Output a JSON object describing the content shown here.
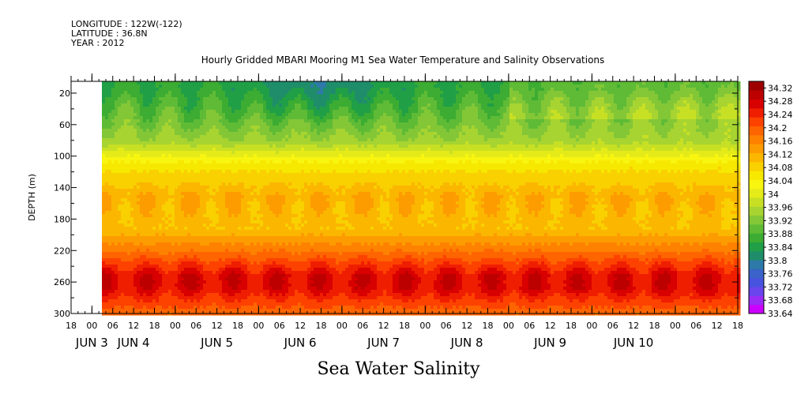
{
  "header": {
    "longitude": "LONGITUDE : 122W(-122)",
    "latitude": "LATITUDE : 36.8N",
    "year": "YEAR : 2012"
  },
  "chart_data": {
    "type": "heatmap",
    "title": "Hourly Gridded MBARI Mooring M1 Sea Water Temperature and Salinity Observations",
    "bottom_title": "Sea Water Salinity",
    "ylabel": "DEPTH (m)",
    "y_range": [
      300,
      5
    ],
    "y_ticks": [
      20,
      60,
      100,
      140,
      180,
      220,
      260,
      300
    ],
    "x_hour_ticks": [
      "18",
      "00",
      "06",
      "12",
      "18",
      "00",
      "06",
      "12",
      "18",
      "00",
      "06",
      "12",
      "18",
      "00",
      "06",
      "12",
      "18",
      "00",
      "06",
      "12",
      "18",
      "00",
      "06",
      "12",
      "18",
      "00",
      "06",
      "12",
      "18",
      "00",
      "06",
      "12",
      "18"
    ],
    "x_day_labels": [
      {
        "label": "JUN  3",
        "at": "JUN 3 00"
      },
      {
        "label": "JUN  4",
        "at": "JUN 3 12"
      },
      {
        "label": "JUN  5",
        "at": "JUN 4 12"
      },
      {
        "label": "JUN  6",
        "at": "JUN 5 12"
      },
      {
        "label": "JUN  7",
        "at": "JUN 6 12"
      },
      {
        "label": "JUN  8",
        "at": "JUN 7 12"
      },
      {
        "label": "JUN  9",
        "at": "JUN 8 12"
      },
      {
        "label": "JUN  10",
        "at": "JUN 9 12"
      }
    ],
    "data_start": "JUN 3 00",
    "colorbar": {
      "levels": [
        "34.32",
        "34.28",
        "34.24",
        "34.2",
        "34.16",
        "34.12",
        "34.08",
        "34.04",
        "34",
        "33.96",
        "33.92",
        "33.88",
        "33.84",
        "33.8",
        "33.76",
        "33.72",
        "33.68",
        "33.64"
      ],
      "min": 33.64,
      "max": 34.34
    },
    "profile": [
      {
        "depth": 10,
        "value": 33.86
      },
      {
        "depth": 40,
        "value": 33.9
      },
      {
        "depth": 80,
        "value": 33.95
      },
      {
        "depth": 110,
        "value": 34.06
      },
      {
        "depth": 150,
        "value": 34.12
      },
      {
        "depth": 190,
        "value": 34.1
      },
      {
        "depth": 220,
        "value": 34.18
      },
      {
        "depth": 250,
        "value": 34.27
      },
      {
        "depth": 265,
        "value": 34.27
      },
      {
        "depth": 300,
        "value": 34.18
      }
    ],
    "colors": [
      "#cc00ff",
      "#9a2cf5",
      "#6a44ec",
      "#4753de",
      "#3b63c9",
      "#2d7aa8",
      "#1f8d6a",
      "#209f47",
      "#3cac32",
      "#5fbb36",
      "#83c737",
      "#a7d430",
      "#c8e024",
      "#e4eb18",
      "#f8f510",
      "#f7e800",
      "#f9d000",
      "#fbb600",
      "#fd9c00",
      "#fe8100",
      "#fe6400",
      "#fd4200",
      "#f01e00",
      "#d80000",
      "#bc0000",
      "#9e0000"
    ]
  }
}
